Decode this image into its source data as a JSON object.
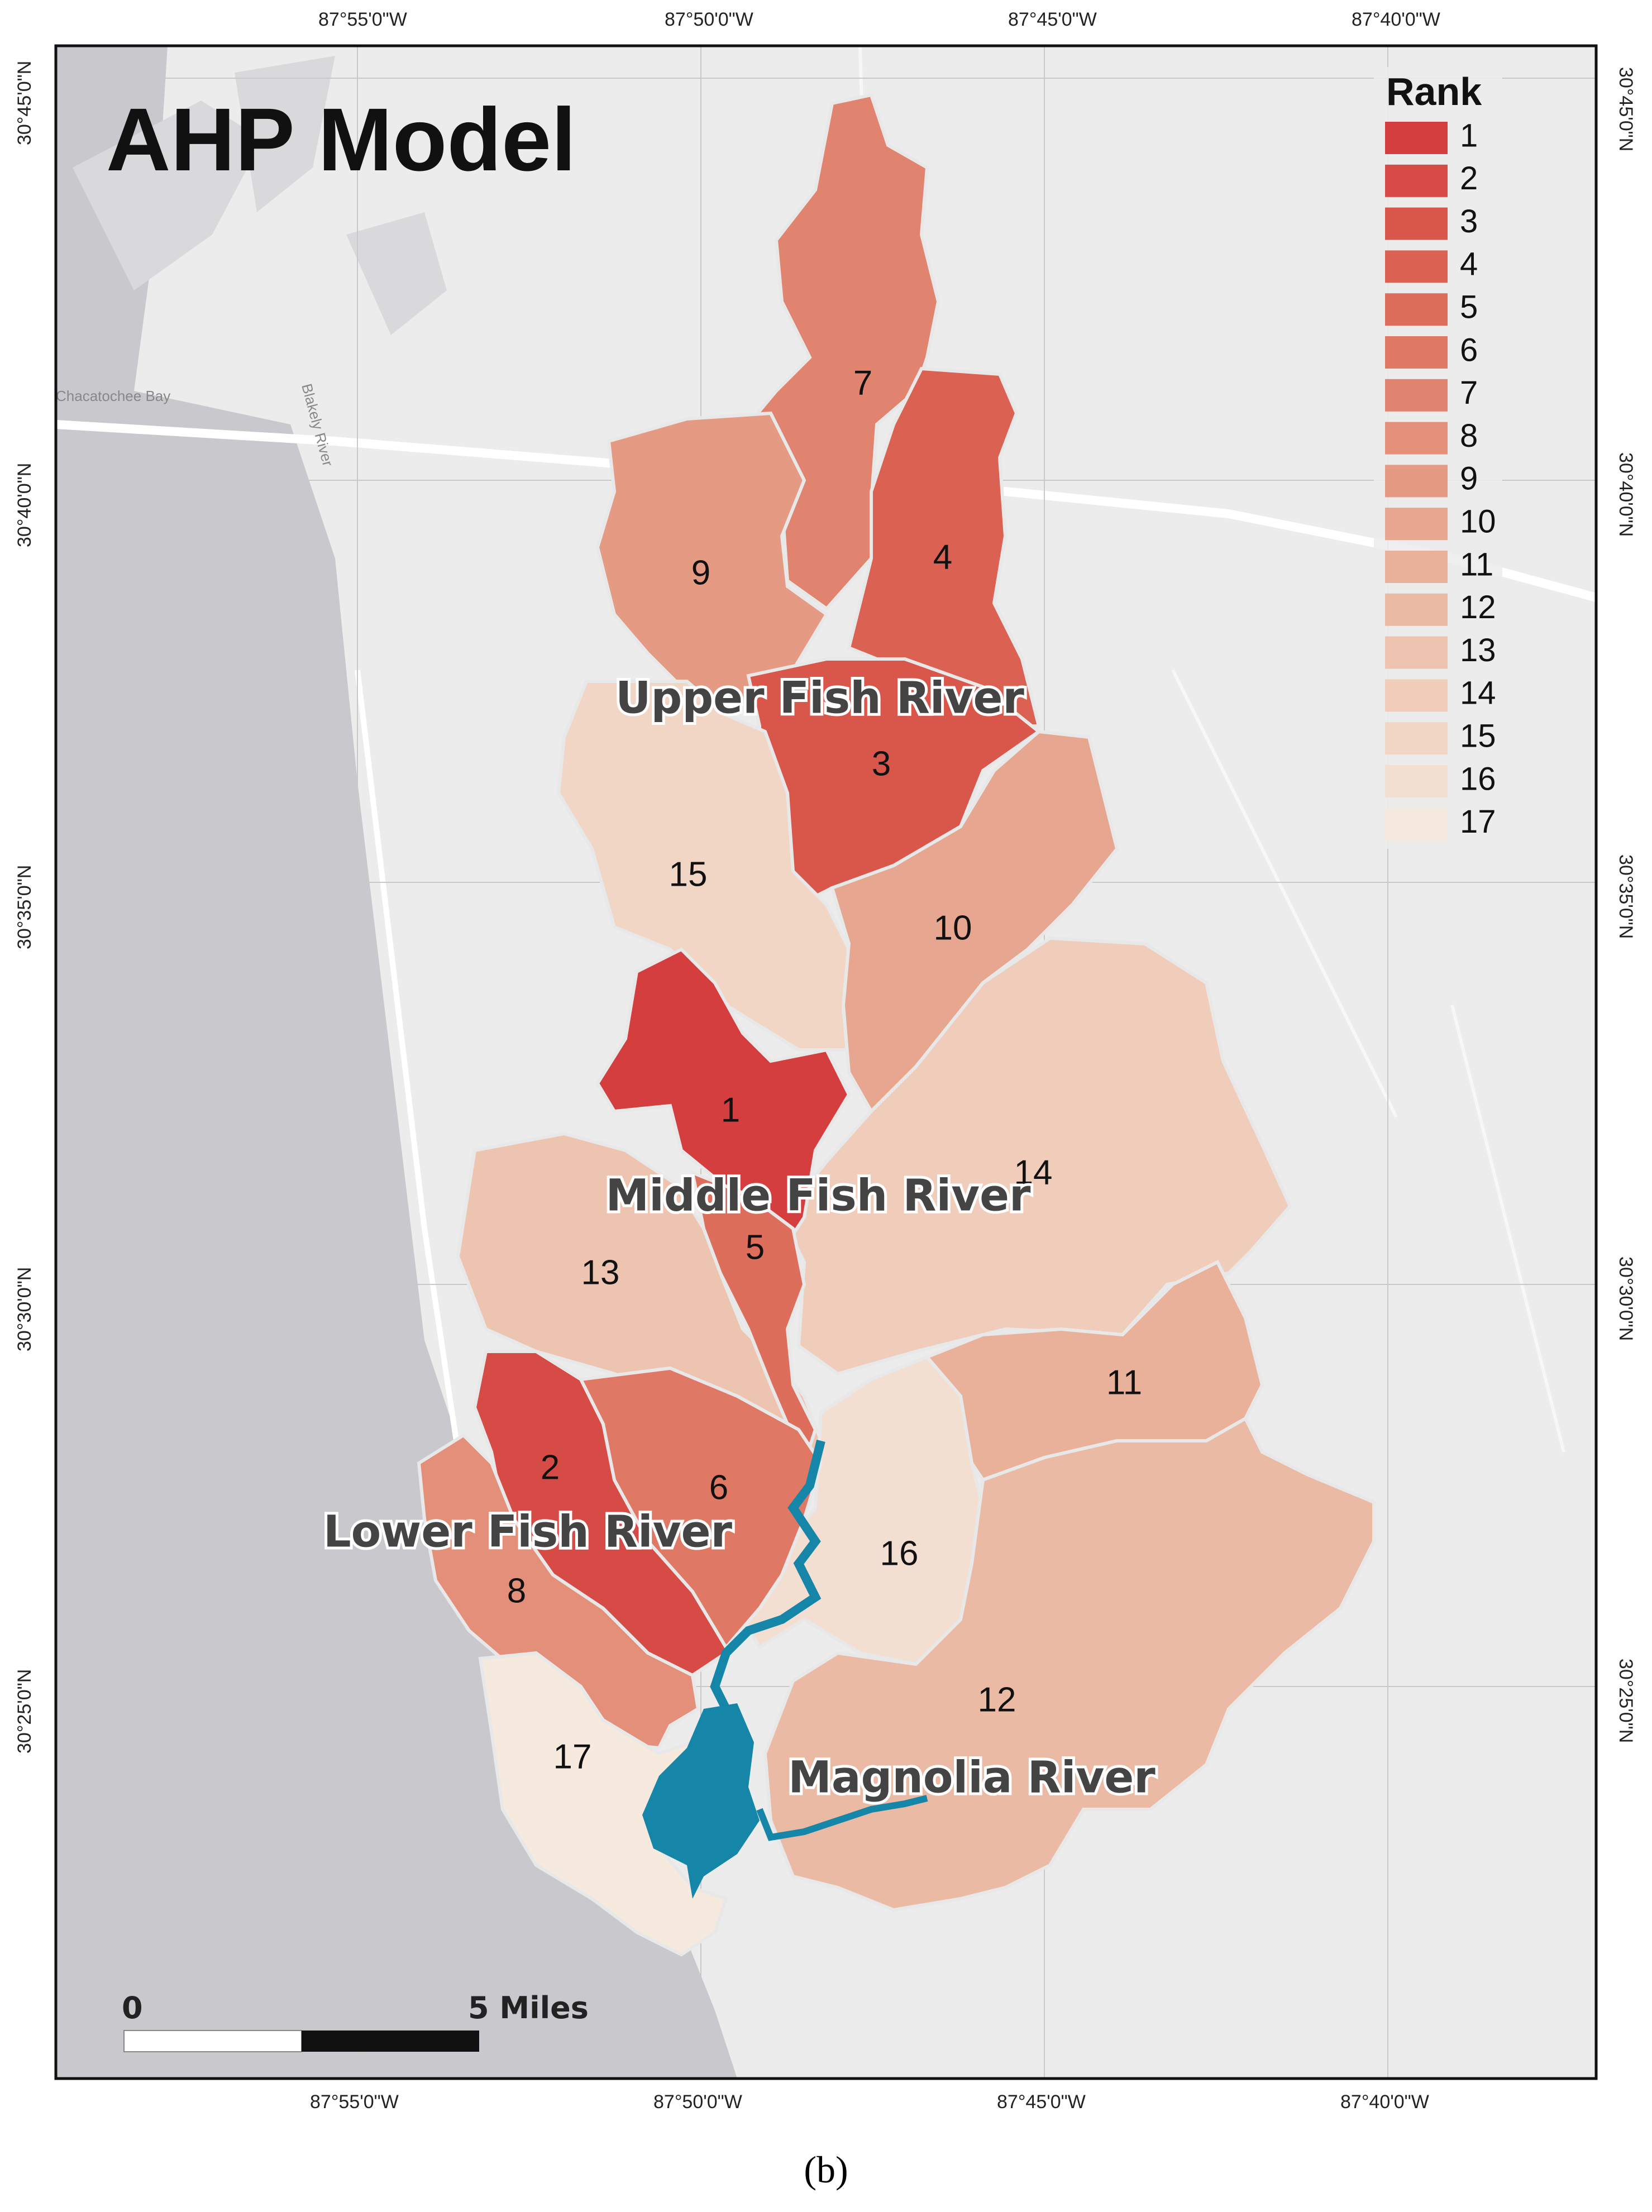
{
  "map": {
    "title": "AHP Model",
    "legend_title": "Rank",
    "legend": [
      {
        "rank": "1",
        "color": "#d53e3e"
      },
      {
        "rank": "2",
        "color": "#d64b45"
      },
      {
        "rank": "3",
        "color": "#d9564b"
      },
      {
        "rank": "4",
        "color": "#db6252"
      },
      {
        "rank": "5",
        "color": "#dd6e5b"
      },
      {
        "rank": "6",
        "color": "#df7965"
      },
      {
        "rank": "7",
        "color": "#e1846f"
      },
      {
        "rank": "8",
        "color": "#e38f79"
      },
      {
        "rank": "9",
        "color": "#e59a84"
      },
      {
        "rank": "10",
        "color": "#e7a68f"
      },
      {
        "rank": "11",
        "color": "#e9b09a"
      },
      {
        "rank": "12",
        "color": "#ebbaa4"
      },
      {
        "rank": "13",
        "color": "#edc4af"
      },
      {
        "rank": "14",
        "color": "#efcdba"
      },
      {
        "rank": "15",
        "color": "#f1d6c5"
      },
      {
        "rank": "16",
        "color": "#f3dfd1"
      },
      {
        "rank": "17",
        "color": "#f6eadf"
      }
    ],
    "rivers": [
      "Upper Fish River",
      "Middle Fish River",
      "Lower Fish River",
      "Magnolia River"
    ],
    "top_coords": [
      "87°55'0\"W",
      "87°50'0\"W",
      "87°45'0\"W",
      "87°40'0\"W"
    ],
    "bottom_coords": [
      "87°55'0\"W",
      "87°50'0\"W",
      "87°45'0\"W",
      "87°40'0\"W"
    ],
    "left_coords": [
      "30°45'0\"N",
      "30°40'0\"N",
      "30°35'0\"N",
      "30°30'0\"N",
      "30°25'0\"N"
    ],
    "right_coords": [
      "30°45'0\"N",
      "30°40'0\"N",
      "30°35'0\"N",
      "30°30'0\"N",
      "30°25'0\"N"
    ],
    "basemap_labels": {
      "bay": "Chacatochee Bay",
      "river": "Blakely River"
    },
    "scale": {
      "start": "0",
      "end": "5 Miles"
    },
    "caption": "(b)",
    "colors": {
      "water": "#1586a8",
      "land": "#ededed",
      "bay": "#c8c8cc",
      "road": "#ffffff"
    }
  }
}
